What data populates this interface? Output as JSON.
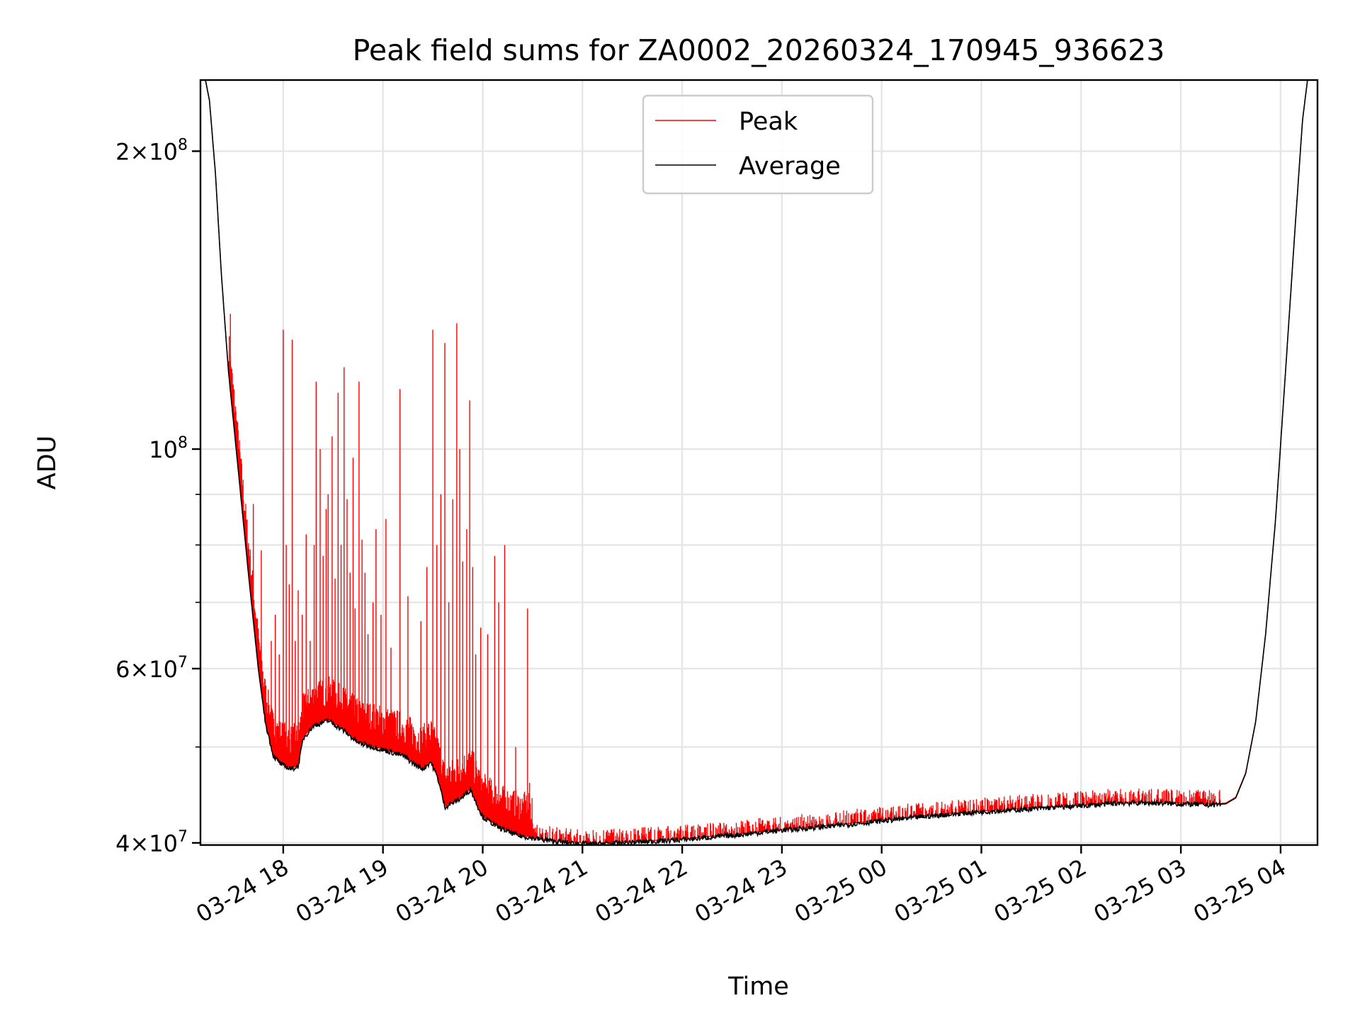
{
  "chart_data": {
    "type": "line",
    "title": "Peak field sums for ZA0002_20260324_170945_936623",
    "xlabel": "Time",
    "ylabel": "ADU",
    "yscale": "log",
    "ylim": [
      39800000,
      236000000
    ],
    "xlim_hours_from_1700": [
      0.17,
      11.37
    ],
    "grid": true,
    "legend_position": "top-center",
    "x_ticks": [
      {
        "hour": 1,
        "label": "03-24 18"
      },
      {
        "hour": 2,
        "label": "03-24 19"
      },
      {
        "hour": 3,
        "label": "03-24 20"
      },
      {
        "hour": 4,
        "label": "03-24 21"
      },
      {
        "hour": 5,
        "label": "03-24 22"
      },
      {
        "hour": 6,
        "label": "03-24 23"
      },
      {
        "hour": 7,
        "label": "03-25 00"
      },
      {
        "hour": 8,
        "label": "03-25 01"
      },
      {
        "hour": 9,
        "label": "03-25 02"
      },
      {
        "hour": 10,
        "label": "03-25 03"
      },
      {
        "hour": 11,
        "label": "03-25 04"
      }
    ],
    "y_ticks": [
      {
        "value": 40000000,
        "base": "4",
        "exp": "7",
        "sci": true
      },
      {
        "value": 60000000,
        "base": "6",
        "exp": "7",
        "sci": true
      },
      {
        "value": 100000000,
        "base": "",
        "exp": "8",
        "sci": false
      },
      {
        "value": 200000000,
        "base": "2",
        "exp": "8",
        "sci": true
      }
    ],
    "y_minor_ticks": [
      50000000,
      70000000,
      80000000,
      90000000
    ],
    "series": [
      {
        "name": "Peak",
        "color": "#ff0000",
        "baseline_follows": "Average",
        "spikes": [
          {
            "x": 0.47,
            "y": 137000000
          },
          {
            "x": 0.51,
            "y": 105000000
          },
          {
            "x": 0.53,
            "y": 103000000
          },
          {
            "x": 0.7,
            "y": 88000000
          },
          {
            "x": 0.78,
            "y": 79000000
          },
          {
            "x": 0.88,
            "y": 64000000
          },
          {
            "x": 0.92,
            "y": 68000000
          },
          {
            "x": 0.96,
            "y": 62000000
          },
          {
            "x": 1.0,
            "y": 132000000
          },
          {
            "x": 1.03,
            "y": 80000000
          },
          {
            "x": 1.06,
            "y": 73000000
          },
          {
            "x": 1.09,
            "y": 129000000
          },
          {
            "x": 1.12,
            "y": 64000000
          },
          {
            "x": 1.15,
            "y": 72000000
          },
          {
            "x": 1.19,
            "y": 68000000
          },
          {
            "x": 1.23,
            "y": 82000000
          },
          {
            "x": 1.27,
            "y": 64000000
          },
          {
            "x": 1.31,
            "y": 80000000
          },
          {
            "x": 1.33,
            "y": 117000000
          },
          {
            "x": 1.37,
            "y": 100000000
          },
          {
            "x": 1.4,
            "y": 78000000
          },
          {
            "x": 1.43,
            "y": 87000000
          },
          {
            "x": 1.45,
            "y": 90000000
          },
          {
            "x": 1.49,
            "y": 103000000
          },
          {
            "x": 1.52,
            "y": 74000000
          },
          {
            "x": 1.55,
            "y": 114000000
          },
          {
            "x": 1.58,
            "y": 80000000
          },
          {
            "x": 1.61,
            "y": 121000000
          },
          {
            "x": 1.64,
            "y": 89000000
          },
          {
            "x": 1.67,
            "y": 75000000
          },
          {
            "x": 1.7,
            "y": 98000000
          },
          {
            "x": 1.72,
            "y": 69000000
          },
          {
            "x": 1.76,
            "y": 117000000
          },
          {
            "x": 1.79,
            "y": 81000000
          },
          {
            "x": 1.82,
            "y": 75000000
          },
          {
            "x": 1.85,
            "y": 65000000
          },
          {
            "x": 1.9,
            "y": 70000000
          },
          {
            "x": 1.93,
            "y": 83000000
          },
          {
            "x": 1.98,
            "y": 68000000
          },
          {
            "x": 2.03,
            "y": 85000000
          },
          {
            "x": 2.08,
            "y": 63000000
          },
          {
            "x": 2.17,
            "y": 115000000
          },
          {
            "x": 2.25,
            "y": 71000000
          },
          {
            "x": 2.38,
            "y": 67000000
          },
          {
            "x": 2.44,
            "y": 76000000
          },
          {
            "x": 2.5,
            "y": 132000000
          },
          {
            "x": 2.54,
            "y": 80000000
          },
          {
            "x": 2.58,
            "y": 90000000
          },
          {
            "x": 2.62,
            "y": 128000000
          },
          {
            "x": 2.66,
            "y": 70000000
          },
          {
            "x": 2.7,
            "y": 89000000
          },
          {
            "x": 2.74,
            "y": 134000000
          },
          {
            "x": 2.77,
            "y": 100000000
          },
          {
            "x": 2.8,
            "y": 77000000
          },
          {
            "x": 2.84,
            "y": 83000000
          },
          {
            "x": 2.87,
            "y": 112000000
          },
          {
            "x": 2.9,
            "y": 76000000
          },
          {
            "x": 2.93,
            "y": 62000000
          },
          {
            "x": 2.98,
            "y": 66000000
          },
          {
            "x": 3.05,
            "y": 65000000
          },
          {
            "x": 3.12,
            "y": 78000000
          },
          {
            "x": 3.16,
            "y": 70000000
          },
          {
            "x": 3.22,
            "y": 80000000
          },
          {
            "x": 3.33,
            "y": 50000000
          },
          {
            "x": 3.45,
            "y": 69000000
          },
          {
            "x": 3.47,
            "y": 46000000
          }
        ]
      },
      {
        "name": "Average",
        "color": "#000000",
        "points": [
          [
            0.17,
            236000000
          ],
          [
            0.22,
            236000000
          ],
          [
            0.26,
            225000000
          ],
          [
            0.32,
            190000000
          ],
          [
            0.38,
            150000000
          ],
          [
            0.45,
            120000000
          ],
          [
            0.55,
            95000000
          ],
          [
            0.65,
            75000000
          ],
          [
            0.75,
            60000000
          ],
          [
            0.82,
            53000000
          ],
          [
            0.9,
            49000000
          ],
          [
            0.98,
            48000000
          ],
          [
            1.08,
            47500000
          ],
          [
            1.15,
            47800000
          ],
          [
            1.2,
            51000000
          ],
          [
            1.3,
            52500000
          ],
          [
            1.45,
            53200000
          ],
          [
            1.6,
            52000000
          ],
          [
            1.75,
            50500000
          ],
          [
            1.9,
            50000000
          ],
          [
            2.05,
            49500000
          ],
          [
            2.2,
            49000000
          ],
          [
            2.32,
            48000000
          ],
          [
            2.4,
            47500000
          ],
          [
            2.48,
            48300000
          ],
          [
            2.55,
            46500000
          ],
          [
            2.62,
            43500000
          ],
          [
            2.72,
            44000000
          ],
          [
            2.8,
            44500000
          ],
          [
            2.88,
            45300000
          ],
          [
            2.93,
            44000000
          ],
          [
            3.0,
            42500000
          ],
          [
            3.15,
            41500000
          ],
          [
            3.35,
            40700000
          ],
          [
            3.6,
            40300000
          ],
          [
            3.85,
            40000000
          ],
          [
            4.1,
            39900000
          ],
          [
            4.4,
            40000000
          ],
          [
            5.0,
            40300000
          ],
          [
            5.5,
            40700000
          ],
          [
            6.0,
            41200000
          ],
          [
            6.5,
            41600000
          ],
          [
            7.0,
            42100000
          ],
          [
            7.5,
            42600000
          ],
          [
            8.0,
            43000000
          ],
          [
            8.5,
            43300000
          ],
          [
            9.0,
            43600000
          ],
          [
            9.4,
            43900000
          ],
          [
            9.7,
            43900000
          ],
          [
            10.0,
            43800000
          ],
          [
            10.3,
            43700000
          ],
          [
            10.45,
            43800000
          ],
          [
            10.55,
            44400000
          ],
          [
            10.65,
            47000000
          ],
          [
            10.75,
            53000000
          ],
          [
            10.85,
            65000000
          ],
          [
            10.95,
            85000000
          ],
          [
            11.05,
            120000000
          ],
          [
            11.15,
            170000000
          ],
          [
            11.22,
            215000000
          ],
          [
            11.27,
            236000000
          ],
          [
            11.37,
            236000000
          ]
        ]
      }
    ]
  }
}
